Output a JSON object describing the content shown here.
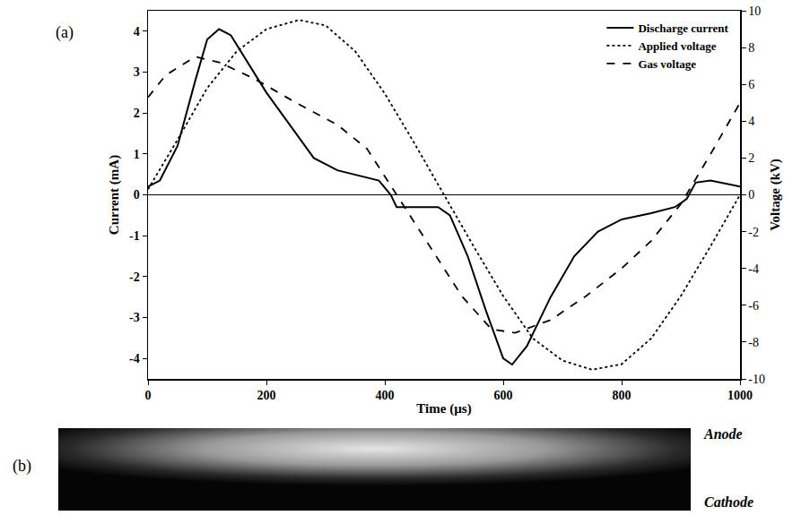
{
  "chart_data": {
    "type": "line",
    "x_label": "Time (µs)",
    "y_label": "Current (mA)",
    "y2_label": "Voltage (kV)",
    "xlim": [
      0,
      1000
    ],
    "xticks": [
      0,
      200,
      400,
      600,
      800,
      1000
    ],
    "ylim": [
      -4.5,
      4.5
    ],
    "yticks": [
      -4,
      -3,
      -2,
      -1,
      0,
      1,
      2,
      3,
      4
    ],
    "y2lim": [
      -10,
      10
    ],
    "y2ticks": [
      -10,
      -8,
      -6,
      -4,
      -2,
      0,
      2,
      4,
      6,
      8,
      10
    ],
    "grid": false,
    "legend": "top right",
    "series": [
      {
        "name": "Discharge current",
        "color": "#000000",
        "line_style": "solid",
        "x": [
          0,
          20,
          50,
          80,
          100,
          120,
          140,
          170,
          200,
          240,
          280,
          320,
          360,
          390,
          410,
          420,
          450,
          490,
          510,
          540,
          570,
          600,
          615,
          640,
          680,
          720,
          760,
          800,
          850,
          890,
          910,
          925,
          950,
          980,
          1000
        ],
        "values": [
          0.2,
          0.35,
          1.2,
          2.8,
          3.8,
          4.05,
          3.9,
          3.2,
          2.5,
          1.7,
          0.9,
          0.6,
          0.45,
          0.35,
          0.0,
          -0.3,
          -0.3,
          -0.3,
          -0.5,
          -1.5,
          -2.8,
          -4.0,
          -4.15,
          -3.7,
          -2.5,
          -1.5,
          -0.9,
          -0.6,
          -0.45,
          -0.3,
          -0.1,
          0.3,
          0.35,
          0.25,
          0.2
        ]
      },
      {
        "name": "Applied voltage",
        "color": "#000000",
        "line_style": "dot",
        "axis": "y2",
        "x": [
          0,
          50,
          100,
          150,
          200,
          255,
          300,
          350,
          400,
          450,
          500,
          550,
          600,
          650,
          700,
          750,
          800,
          850,
          900,
          950,
          1000
        ],
        "values": [
          0.3,
          3,
          5.8,
          7.8,
          9.0,
          9.5,
          9.2,
          7.8,
          5.5,
          2.8,
          0,
          -2.8,
          -5.5,
          -7.8,
          -9.0,
          -9.5,
          -9.2,
          -7.8,
          -5.5,
          -2.8,
          0
        ]
      },
      {
        "name": "Gas voltage",
        "color": "#000000",
        "line_style": "dash",
        "axis": "y2",
        "x": [
          0,
          30,
          80,
          120,
          180,
          250,
          320,
          370,
          420,
          470,
          530,
          580,
          620,
          680,
          740,
          800,
          850,
          900,
          950,
          1000
        ],
        "values": [
          5.3,
          6.5,
          7.5,
          7.2,
          6.3,
          5.0,
          3.8,
          2.5,
          0,
          -2.5,
          -5.5,
          -7.3,
          -7.5,
          -6.8,
          -5.5,
          -4.0,
          -2.5,
          -0.5,
          2.2,
          5
        ]
      }
    ]
  },
  "panels": {
    "a": "(a)",
    "b": "(b)"
  },
  "image_labels": {
    "top": "Anode",
    "bottom": "Cathode"
  }
}
